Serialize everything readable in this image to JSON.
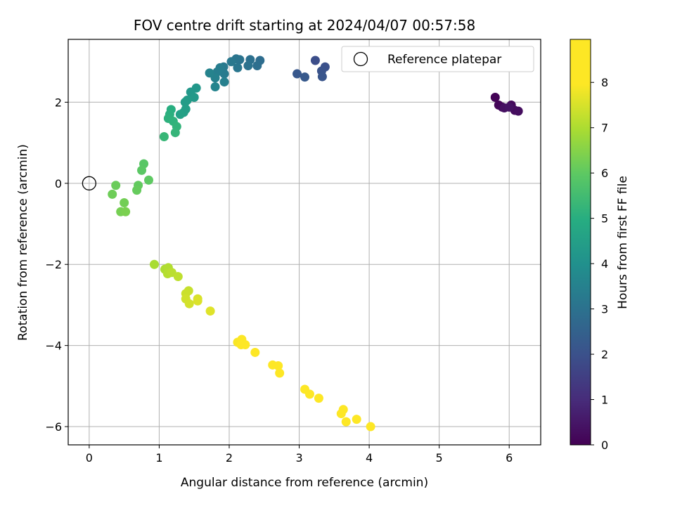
{
  "chart_data": {
    "type": "scatter",
    "title": "FOV centre drift starting at 2024/04/07 00:57:58",
    "xlabel": "Angular distance from reference (arcmin)",
    "ylabel": "Rotation from reference (arcmin)",
    "xlim": [
      -0.3,
      6.45
    ],
    "ylim": [
      -6.45,
      3.55
    ],
    "xticks": [
      0,
      1,
      2,
      3,
      4,
      5,
      6
    ],
    "yticks": [
      -6,
      -4,
      -2,
      0,
      2
    ],
    "grid": true,
    "legend": {
      "position": "top-right",
      "entries": [
        "Reference platepar"
      ]
    },
    "reference_point": {
      "x": 0,
      "y": 0,
      "label": "Reference platepar"
    },
    "colorbar": {
      "label": "Hours from first FF file",
      "colormap": "viridis",
      "range": [
        0,
        8.95
      ],
      "ticks": [
        0,
        1,
        2,
        3,
        4,
        5,
        6,
        7,
        8
      ]
    },
    "points": [
      {
        "x": 5.8,
        "y": 2.12,
        "c": 0.05
      },
      {
        "x": 5.85,
        "y": 1.93,
        "c": 0.1
      },
      {
        "x": 5.9,
        "y": 1.88,
        "c": 0.15
      },
      {
        "x": 6.03,
        "y": 1.93,
        "c": 0.2
      },
      {
        "x": 6.08,
        "y": 1.8,
        "c": 0.25
      },
      {
        "x": 6.13,
        "y": 1.78,
        "c": 0.3
      },
      {
        "x": 5.93,
        "y": 1.86,
        "c": 0.35
      },
      {
        "x": 6.0,
        "y": 1.88,
        "c": 0.4
      },
      {
        "x": 3.23,
        "y": 3.03,
        "c": 1.9
      },
      {
        "x": 3.37,
        "y": 2.87,
        "c": 2.0
      },
      {
        "x": 3.32,
        "y": 2.77,
        "c": 2.05
      },
      {
        "x": 3.33,
        "y": 2.63,
        "c": 2.1
      },
      {
        "x": 2.97,
        "y": 2.7,
        "c": 2.2
      },
      {
        "x": 3.08,
        "y": 2.62,
        "c": 2.25
      },
      {
        "x": 2.44,
        "y": 3.03,
        "c": 2.85
      },
      {
        "x": 2.4,
        "y": 2.9,
        "c": 2.9
      },
      {
        "x": 2.3,
        "y": 3.05,
        "c": 2.95
      },
      {
        "x": 2.27,
        "y": 2.9,
        "c": 3.0
      },
      {
        "x": 2.15,
        "y": 3.05,
        "c": 3.05
      },
      {
        "x": 2.1,
        "y": 3.07,
        "c": 3.1
      },
      {
        "x": 2.12,
        "y": 2.85,
        "c": 3.15
      },
      {
        "x": 2.03,
        "y": 3.0,
        "c": 3.2
      },
      {
        "x": 1.92,
        "y": 2.87,
        "c": 3.25
      },
      {
        "x": 1.93,
        "y": 2.7,
        "c": 3.3
      },
      {
        "x": 1.87,
        "y": 2.85,
        "c": 3.35
      },
      {
        "x": 1.83,
        "y": 2.75,
        "c": 3.4
      },
      {
        "x": 1.93,
        "y": 2.5,
        "c": 3.45
      },
      {
        "x": 1.8,
        "y": 2.6,
        "c": 3.5
      },
      {
        "x": 1.72,
        "y": 2.72,
        "c": 3.55
      },
      {
        "x": 1.8,
        "y": 2.38,
        "c": 3.6
      },
      {
        "x": 1.53,
        "y": 2.35,
        "c": 4.2
      },
      {
        "x": 1.45,
        "y": 2.25,
        "c": 4.25
      },
      {
        "x": 1.5,
        "y": 2.12,
        "c": 4.3
      },
      {
        "x": 1.4,
        "y": 2.05,
        "c": 4.35
      },
      {
        "x": 1.37,
        "y": 2.0,
        "c": 4.4
      },
      {
        "x": 1.38,
        "y": 1.83,
        "c": 4.45
      },
      {
        "x": 1.35,
        "y": 1.75,
        "c": 4.5
      },
      {
        "x": 1.3,
        "y": 1.7,
        "c": 4.55
      },
      {
        "x": 1.17,
        "y": 1.82,
        "c": 5.0
      },
      {
        "x": 1.15,
        "y": 1.7,
        "c": 5.05
      },
      {
        "x": 1.13,
        "y": 1.6,
        "c": 5.1
      },
      {
        "x": 1.2,
        "y": 1.53,
        "c": 5.15
      },
      {
        "x": 1.25,
        "y": 1.4,
        "c": 5.2
      },
      {
        "x": 1.23,
        "y": 1.25,
        "c": 5.25
      },
      {
        "x": 1.07,
        "y": 1.15,
        "c": 5.3
      },
      {
        "x": 0.78,
        "y": 0.48,
        "c": 5.9
      },
      {
        "x": 0.75,
        "y": 0.32,
        "c": 5.95
      },
      {
        "x": 0.85,
        "y": 0.08,
        "c": 6.0
      },
      {
        "x": 0.7,
        "y": -0.05,
        "c": 6.05
      },
      {
        "x": 0.68,
        "y": -0.17,
        "c": 6.1
      },
      {
        "x": 0.38,
        "y": -0.05,
        "c": 6.15
      },
      {
        "x": 0.33,
        "y": -0.27,
        "c": 6.2
      },
      {
        "x": 0.5,
        "y": -0.48,
        "c": 6.25
      },
      {
        "x": 0.45,
        "y": -0.7,
        "c": 6.3
      },
      {
        "x": 0.52,
        "y": -0.7,
        "c": 6.35
      },
      {
        "x": 0.93,
        "y": -2.0,
        "c": 6.95
      },
      {
        "x": 1.08,
        "y": -2.12,
        "c": 7.0
      },
      {
        "x": 1.13,
        "y": -2.08,
        "c": 7.05
      },
      {
        "x": 1.12,
        "y": -2.23,
        "c": 7.1
      },
      {
        "x": 1.18,
        "y": -2.2,
        "c": 7.15
      },
      {
        "x": 1.27,
        "y": -2.3,
        "c": 7.2
      },
      {
        "x": 1.42,
        "y": -2.65,
        "c": 7.3
      },
      {
        "x": 1.38,
        "y": -2.72,
        "c": 7.35
      },
      {
        "x": 1.38,
        "y": -2.85,
        "c": 7.4
      },
      {
        "x": 1.43,
        "y": -2.97,
        "c": 7.45
      },
      {
        "x": 1.55,
        "y": -2.85,
        "c": 7.5
      },
      {
        "x": 1.55,
        "y": -2.9,
        "c": 7.55
      },
      {
        "x": 1.73,
        "y": -3.15,
        "c": 7.6
      },
      {
        "x": 2.12,
        "y": -3.92,
        "c": 7.9
      },
      {
        "x": 2.18,
        "y": -3.85,
        "c": 7.95
      },
      {
        "x": 2.17,
        "y": -3.98,
        "c": 8.0
      },
      {
        "x": 2.23,
        "y": -3.98,
        "c": 8.05
      },
      {
        "x": 2.37,
        "y": -4.17,
        "c": 8.1
      },
      {
        "x": 2.62,
        "y": -4.48,
        "c": 8.2
      },
      {
        "x": 2.7,
        "y": -4.5,
        "c": 8.25
      },
      {
        "x": 2.72,
        "y": -4.68,
        "c": 8.3
      },
      {
        "x": 3.08,
        "y": -5.08,
        "c": 8.4
      },
      {
        "x": 3.15,
        "y": -5.2,
        "c": 8.45
      },
      {
        "x": 3.28,
        "y": -5.3,
        "c": 8.5
      },
      {
        "x": 3.63,
        "y": -5.58,
        "c": 8.6
      },
      {
        "x": 3.6,
        "y": -5.68,
        "c": 8.65
      },
      {
        "x": 3.67,
        "y": -5.88,
        "c": 8.7
      },
      {
        "x": 3.82,
        "y": -5.82,
        "c": 8.75
      },
      {
        "x": 4.02,
        "y": -6.0,
        "c": 8.85
      }
    ]
  }
}
